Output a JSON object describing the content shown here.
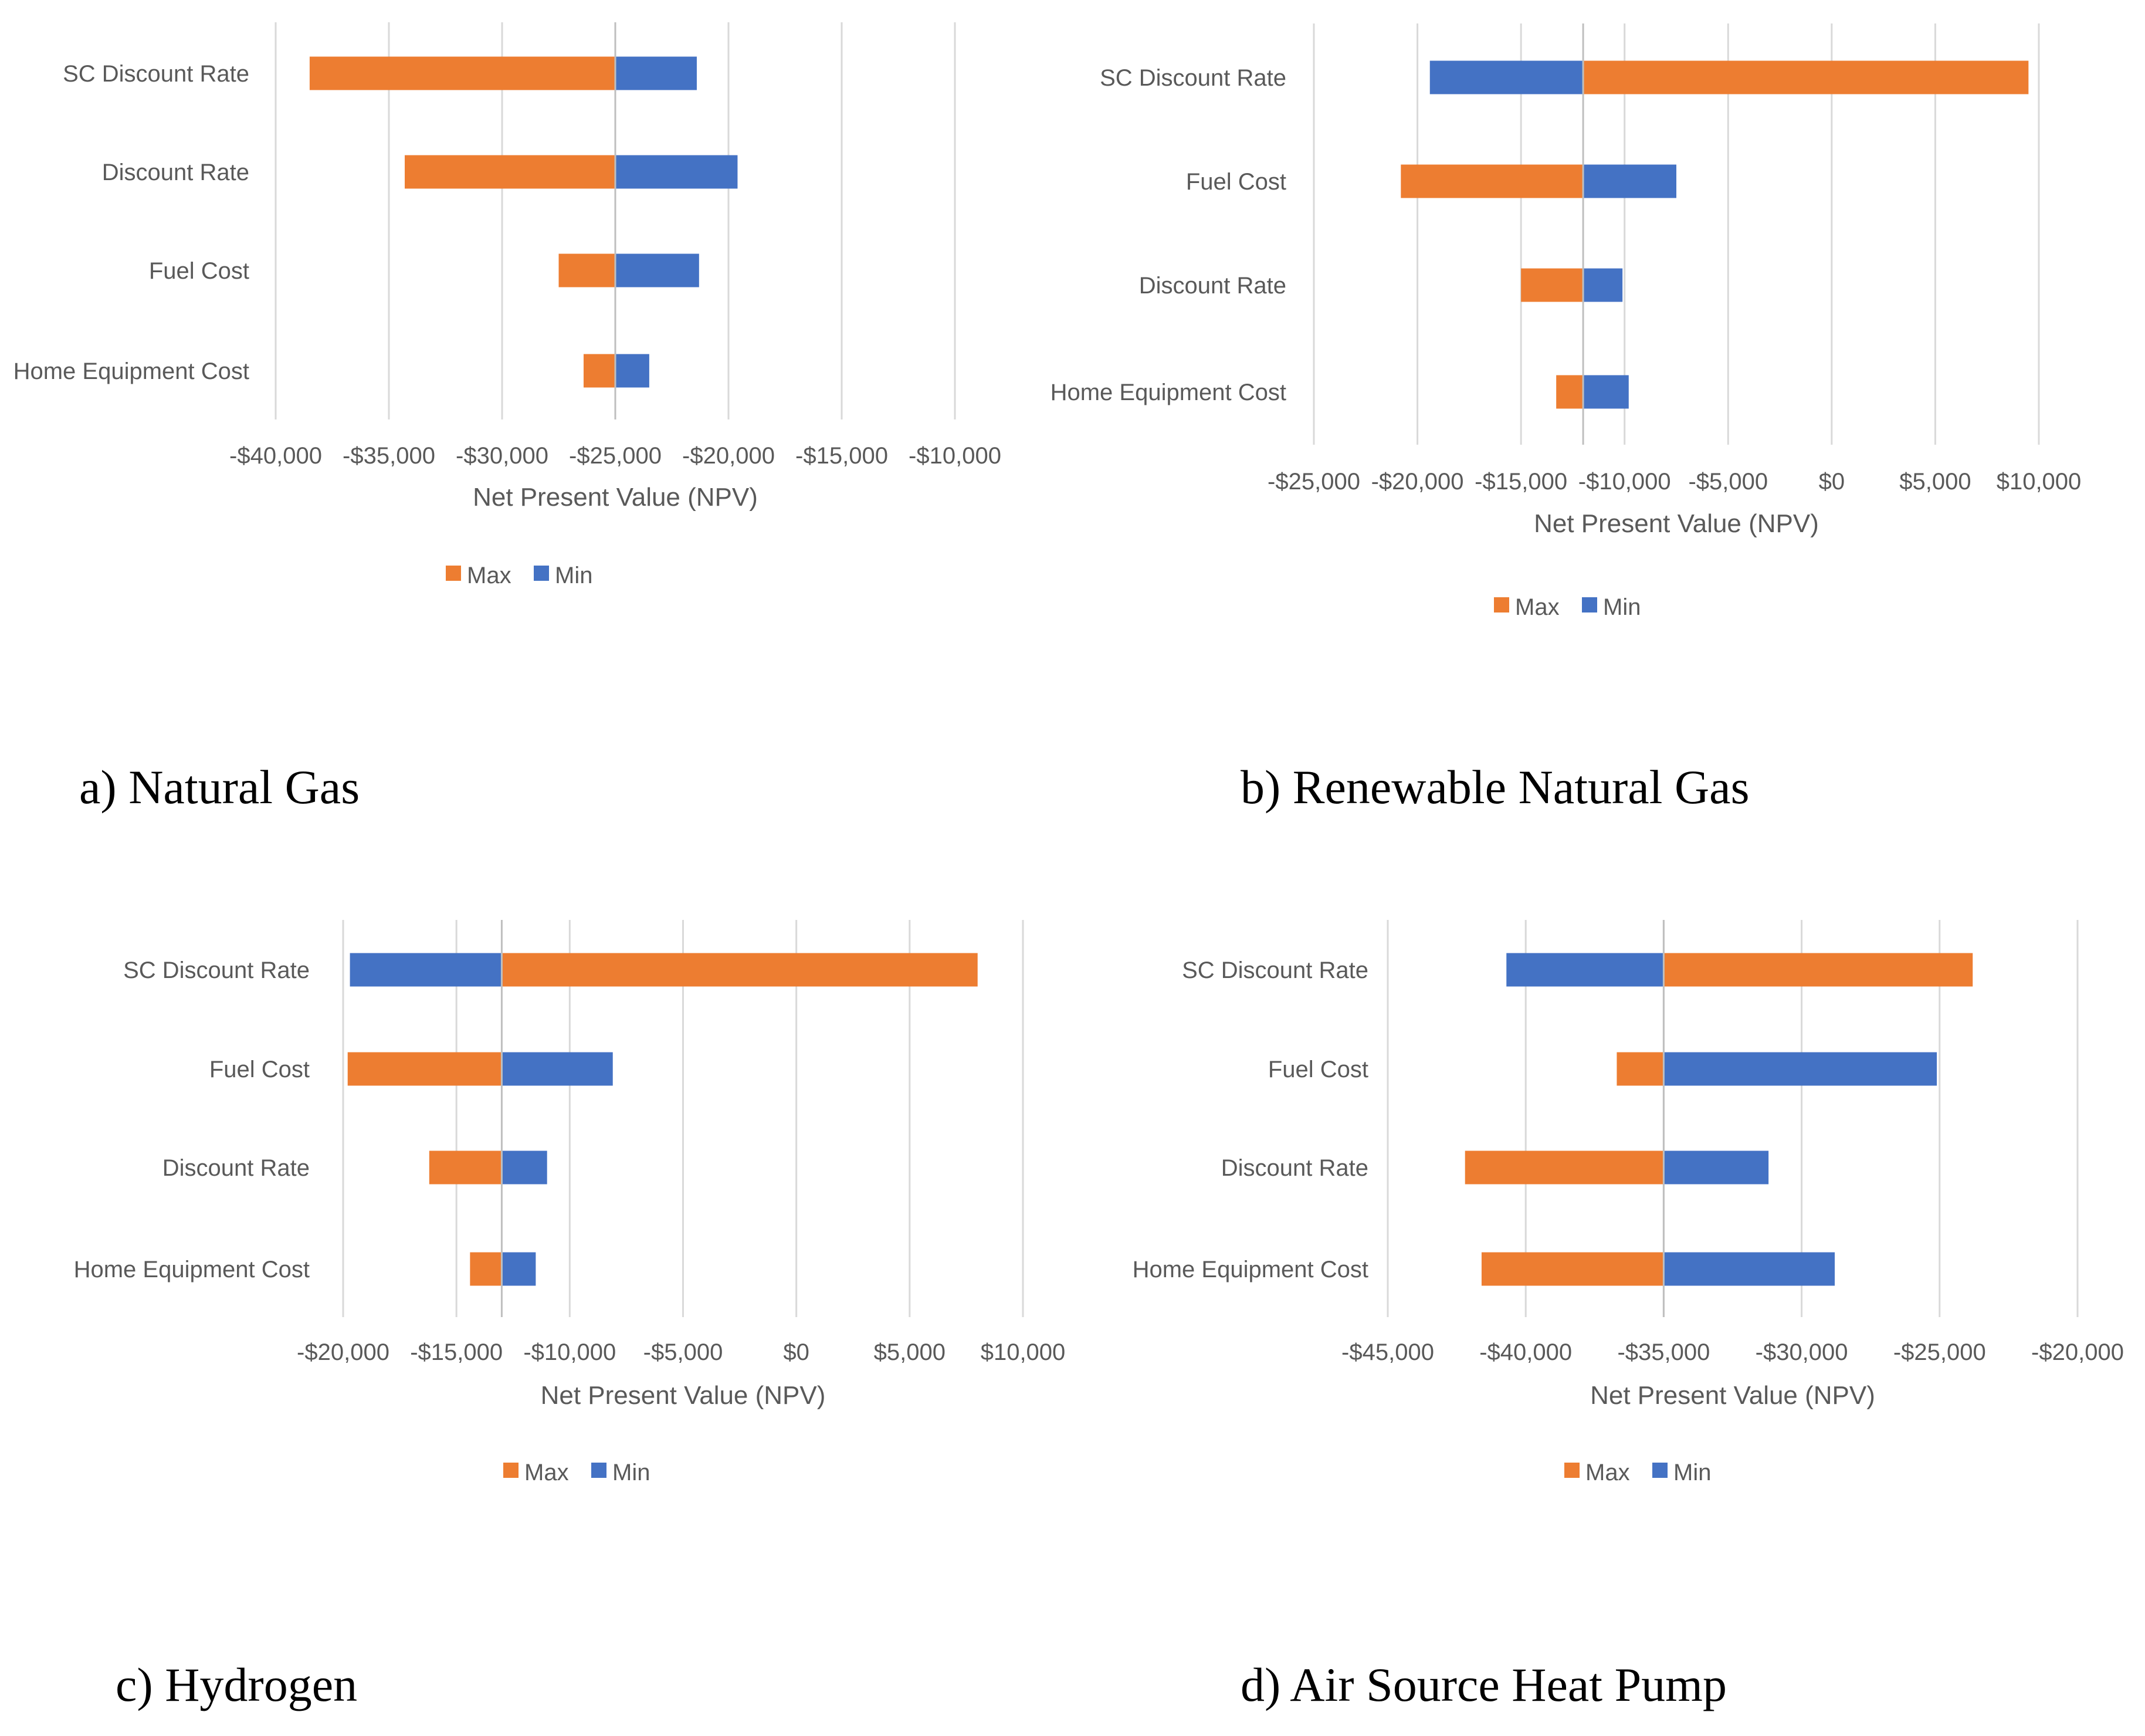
{
  "colors": {
    "max": "#ED7D31",
    "min": "#4472C4",
    "grid": "#D9D9D9",
    "text": "#595959"
  },
  "legend": {
    "max_label": "Max",
    "min_label": "Min"
  },
  "captions": {
    "a": "a) Natural Gas",
    "b": "b) Renewable Natural Gas",
    "c": "c) Hydrogen",
    "d": "d) Air Source Heat Pump"
  },
  "chart_data": [
    {
      "id": "a",
      "type": "bar",
      "orientation": "horizontal",
      "subtype": "tornado",
      "title": "a) Natural Gas",
      "xlabel": "Net Present Value (NPV)",
      "ylabel": "",
      "xlim": [
        -40000,
        -10000
      ],
      "xticks": [
        -40000,
        -35000,
        -30000,
        -25000,
        -20000,
        -15000,
        -10000
      ],
      "xtick_labels": [
        "-$40,000",
        "-$35,000",
        "-$30,000",
        "-$25,000",
        "-$20,000",
        "-$15,000",
        "-$10,000"
      ],
      "categories": [
        "SC Discount Rate",
        "Discount Rate",
        "Fuel Cost",
        "Home Equipment Cost"
      ],
      "baseline": -25000,
      "series": [
        {
          "name": "Max",
          "values": [
            -38500,
            -34300,
            -27500,
            -26400
          ]
        },
        {
          "name": "Min",
          "values": [
            -21400,
            -19600,
            -21300,
            -23500
          ]
        }
      ],
      "legend": "bottom"
    },
    {
      "id": "b",
      "type": "bar",
      "orientation": "horizontal",
      "subtype": "tornado",
      "title": "b) Renewable Natural Gas",
      "xlabel": "Net Present Value (NPV)",
      "ylabel": "",
      "xlim": [
        -25000,
        10000
      ],
      "xticks": [
        -25000,
        -20000,
        -15000,
        -10000,
        -5000,
        0,
        5000,
        10000
      ],
      "xtick_labels": [
        "-$25,000",
        "-$20,000",
        "-$15,000",
        "-$10,000",
        "-$5,000",
        "$0",
        "$5,000",
        "$10,000"
      ],
      "categories": [
        "SC Discount Rate",
        "Fuel Cost",
        "Discount Rate",
        "Home Equipment Cost"
      ],
      "baseline": -12000,
      "series": [
        {
          "name": "Max",
          "values": [
            9500,
            -20800,
            -15000,
            -13300
          ]
        },
        {
          "name": "Min",
          "values": [
            -19400,
            -7500,
            -10100,
            -9800
          ]
        }
      ],
      "legend": "bottom"
    },
    {
      "id": "c",
      "type": "bar",
      "orientation": "horizontal",
      "subtype": "tornado",
      "title": "c) Hydrogen",
      "xlabel": "Net Present Value (NPV)",
      "ylabel": "",
      "xlim": [
        -20000,
        10000
      ],
      "xticks": [
        -20000,
        -15000,
        -10000,
        -5000,
        0,
        5000,
        10000
      ],
      "xtick_labels": [
        "-$20,000",
        "-$15,000",
        "-$10,000",
        "-$5,000",
        "$0",
        "$5,000",
        "$10,000"
      ],
      "categories": [
        "SC Discount Rate",
        "Fuel Cost",
        "Discount Rate",
        "Home Equipment Cost"
      ],
      "baseline": -13000,
      "series": [
        {
          "name": "Max",
          "values": [
            8000,
            -19800,
            -16200,
            -14400
          ]
        },
        {
          "name": "Min",
          "values": [
            -19700,
            -8100,
            -11000,
            -11500
          ]
        }
      ],
      "legend": "bottom"
    },
    {
      "id": "d",
      "type": "bar",
      "orientation": "horizontal",
      "subtype": "tornado",
      "title": "d) Air Source Heat Pump",
      "xlabel": "Net Present Value (NPV)",
      "ylabel": "",
      "xlim": [
        -45000,
        -20000
      ],
      "xticks": [
        -45000,
        -40000,
        -35000,
        -30000,
        -25000,
        -20000
      ],
      "xtick_labels": [
        "-$45,000",
        "-$40,000",
        "-$35,000",
        "-$30,000",
        "-$25,000",
        "-$20,000"
      ],
      "categories": [
        "SC Discount Rate",
        "Fuel Cost",
        "Discount Rate",
        "Home Equipment Cost"
      ],
      "baseline": -35000,
      "series": [
        {
          "name": "Max",
          "values": [
            -23800,
            -36700,
            -42200,
            -41600
          ]
        },
        {
          "name": "Min",
          "values": [
            -40700,
            -25100,
            -31200,
            -28800
          ]
        }
      ],
      "legend": "bottom"
    }
  ]
}
